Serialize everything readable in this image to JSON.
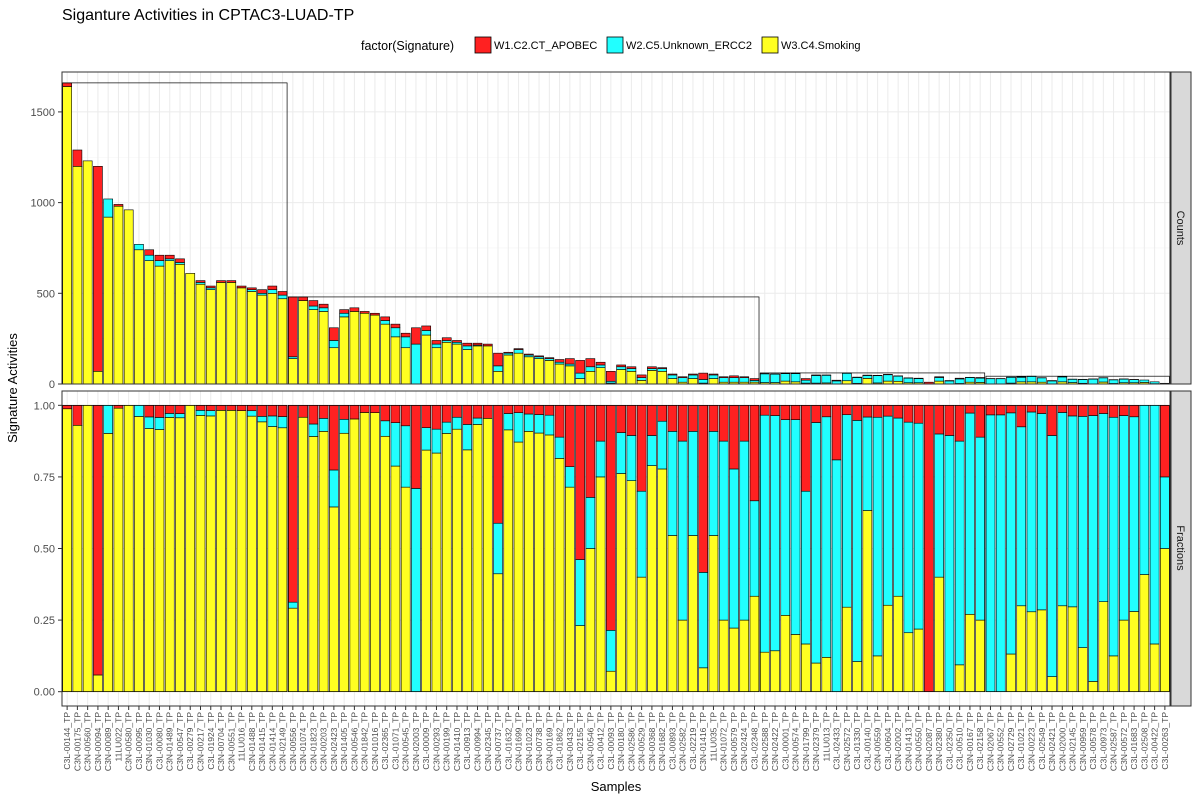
{
  "chart_data": {
    "type": "bar",
    "stacked": true,
    "title": "Siganture Activities in CPTAC3-LUAD-TP",
    "xlabel": "Samples",
    "ylabel": "Signature Activities",
    "legend": {
      "title": "factor(Signature)",
      "position": "top",
      "entries": [
        {
          "name": "W1.C2.CT_APOBEC",
          "color": "#ff2121"
        },
        {
          "name": "W2.C5.Unknown_ERCC2",
          "color": "#21ffff"
        },
        {
          "name": "W3.C4.Smoking",
          "color": "#ffff21"
        }
      ]
    },
    "panels": [
      {
        "label": "Counts",
        "ylim": [
          0,
          1720
        ],
        "ticks": [
          0,
          500,
          1000,
          1500
        ],
        "tick_labels": [
          "0",
          "500",
          "1000",
          "1500"
        ]
      },
      {
        "label": "Fractions",
        "ylim": [
          -0.05,
          1.05
        ],
        "ticks": [
          0,
          0.25,
          0.5,
          0.75,
          1.0
        ],
        "tick_labels": [
          "0.00",
          "0.25",
          "0.50",
          "0.75",
          "1.00"
        ]
      }
    ],
    "tick_labels": [
      "C3L-00144_TP",
      "C3N-00175_TP",
      "C3N-00560_TP",
      "C3N-00094_TP",
      "C3N-00089_TP",
      "11LU022_TP",
      "C3N-00580_TP",
      "C3L-00095_TP",
      "C3N-01030_TP",
      "C3L-00080_TP",
      "C3N-01489_TP",
      "C3N-00547_TP",
      "C3L-00279_TP",
      "C3N-00217_TP",
      "C3L-01924_TP",
      "C3N-00704_TP",
      "C3N-00551_TP",
      "11LU016_TP",
      "C3N-01488_TP",
      "C3N-01415_TP",
      "C3N-01414_TP",
      "C3N-02149_TP",
      "C3N-00556_TP",
      "C3N-01074_TP",
      "C3N-01823_TP",
      "C3N-00203_TP",
      "C3N-02423_TP",
      "C3N-01405_TP",
      "C3N-00546_TP",
      "C3N-01842_TP",
      "C3N-01016_TP",
      "C3L-02365_TP",
      "C3L-01071_TP",
      "C3N-00545_TP",
      "C3N-02003_TP",
      "C3L-00009_TP",
      "C3N-00293_TP",
      "C3N-00199_TP",
      "C3N-01410_TP",
      "C3L-00913_TP",
      "C3N-00994_TP",
      "C3N-02345_TP",
      "C3N-00737_TP",
      "C3L-01632_TP",
      "C3N-01699_TP",
      "C3N-01023_TP",
      "C3N-00738_TP",
      "C3N-00169_TP",
      "C3L-01862_TP",
      "C3N-00433_TP",
      "C3L-02155_TP",
      "C3N-00546_TP",
      "C3L-00412_TP",
      "C3L-00093_TP",
      "C3N-00180_TP",
      "C3N-02586_TP",
      "C3N-00529_TP",
      "C3N-00368_TP",
      "C3N-01682_TP",
      "C3L-00893_TP",
      "C3N-02582_TP",
      "C3L-02219_TP",
      "C3N-01416_TP",
      "11LU035_TP",
      "C3N-01072_TP",
      "C3N-00579_TP",
      "C3N-02424_TP",
      "C3L-02348_TP",
      "C3N-02588_TP",
      "C3N-02422_TP",
      "C3L-00001_TP",
      "C3N-00574_TP",
      "C3N-01799_TP",
      "C3N-02379_TP",
      "11LU013_TP",
      "C3L-02433_TP",
      "C3N-02572_TP",
      "C3L-01330_TP",
      "C3L-00140_TP",
      "C3N-00559_TP",
      "C3L-00604_TP",
      "C3N-02002_TP",
      "C3N-01413_TP",
      "C3N-00550_TP",
      "C3N-02087_TP",
      "C3N-02380_TP",
      "C3L-02350_TP",
      "C3L-00510_TP",
      "C3N-00167_TP",
      "C3L-02158_TP",
      "C3N-02067_TP",
      "C3N-00552_TP",
      "C3N-02729_TP",
      "C3L-01021_TP",
      "C3N-00223_TP",
      "C3L-02549_TP",
      "C3N-02421_TP",
      "C3N-02000_TP",
      "C3N-02145_TP",
      "C3N-00959_TP",
      "C3L-00578_TP",
      "C3L-00973_TP",
      "C3N-02587_TP",
      "C3N-00572_TP",
      "C3L-01683_TP",
      "C3L-02508_TP",
      "C3L-00422_TP",
      "C3L-00263_TP"
    ],
    "groups": [
      22,
      46,
      22,
      18
    ],
    "series": [
      {
        "name": "W1.C2.CT_APOBEC",
        "values": [
          20,
          90,
          0,
          1130,
          0,
          10,
          0,
          0,
          30,
          30,
          20,
          20,
          0,
          10,
          10,
          10,
          10,
          10,
          10,
          20,
          20,
          20,
          330,
          20,
          30,
          20,
          70,
          20,
          20,
          10,
          10,
          20,
          20,
          20,
          90,
          25,
          20,
          15,
          10,
          15,
          10,
          10,
          70,
          5,
          5,
          5,
          5,
          5,
          15,
          30,
          70,
          45,
          15,
          55,
          10,
          10,
          15,
          10,
          5,
          5,
          5,
          5,
          35,
          5,
          5,
          10,
          5,
          10,
          2,
          2,
          3,
          3,
          9,
          3,
          2,
          4,
          2,
          2,
          2,
          2,
          2,
          2,
          2,
          2,
          10,
          4,
          2,
          4,
          1,
          4,
          1,
          1,
          1,
          3,
          1,
          1,
          2,
          1,
          1,
          1,
          1,
          1,
          1,
          1,
          1,
          0,
          0,
          1
        ]
      },
      {
        "name": "W2.C5.Unknown_ERCC2",
        "values": [
          0,
          0,
          0,
          0,
          100,
          0,
          0,
          30,
          30,
          30,
          10,
          10,
          0,
          10,
          10,
          0,
          0,
          0,
          10,
          10,
          20,
          20,
          10,
          0,
          20,
          20,
          40,
          20,
          0,
          0,
          0,
          20,
          50,
          60,
          220,
          25,
          20,
          10,
          10,
          20,
          5,
          0,
          30,
          10,
          20,
          10,
          10,
          10,
          10,
          10,
          30,
          25,
          15,
          10,
          15,
          15,
          15,
          10,
          15,
          20,
          25,
          20,
          20,
          20,
          25,
          25,
          25,
          10,
          48,
          46,
          41,
          45,
          16,
          42,
          42,
          17,
          41,
          32,
          16,
          40,
          35,
          28,
          25,
          23,
          0,
          20,
          17,
          25,
          26,
          23,
          29,
          29,
          32,
          25,
          30,
          24,
          16,
          27,
          18,
          21,
          26,
          23,
          20,
          20,
          17,
          13,
          10,
          1
        ]
      },
      {
        "name": "W3.C4.Smoking",
        "values": [
          1640,
          1200,
          1230,
          70,
          920,
          980,
          960,
          740,
          680,
          650,
          680,
          660,
          610,
          550,
          520,
          560,
          560,
          530,
          510,
          490,
          500,
          470,
          140,
          460,
          410,
          400,
          200,
          370,
          400,
          390,
          380,
          330,
          260,
          200,
          0,
          270,
          200,
          230,
          220,
          190,
          210,
          210,
          70,
          160,
          170,
          150,
          140,
          130,
          110,
          100,
          30,
          70,
          90,
          5,
          80,
          70,
          20,
          75,
          70,
          30,
          10,
          30,
          5,
          30,
          10,
          10,
          10,
          10,
          8,
          8,
          16,
          12,
          5,
          5,
          6,
          0,
          18,
          4,
          31,
          6,
          16,
          15,
          7,
          7,
          0,
          16,
          0,
          3,
          10,
          9,
          0,
          0,
          5,
          12,
          12,
          10,
          1,
          12,
          8,
          4,
          1,
          11,
          3,
          7,
          7,
          9,
          2,
          2
        ]
      }
    ]
  }
}
